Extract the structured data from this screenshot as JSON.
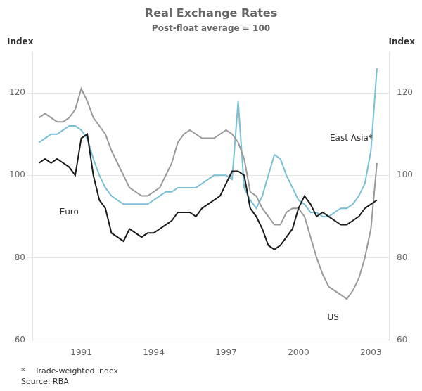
{
  "chart_data": {
    "type": "line",
    "title": "Real Exchange Rates",
    "subtitle": "Post-float average = 100",
    "y_label": "Index",
    "y2_label": "Index",
    "x": [
      1989.25,
      1989.5,
      1989.75,
      1990.0,
      1990.25,
      1990.5,
      1990.75,
      1991.0,
      1991.25,
      1991.5,
      1991.75,
      1992.0,
      1992.25,
      1992.5,
      1992.75,
      1993.0,
      1993.25,
      1993.5,
      1993.75,
      1994.0,
      1994.25,
      1994.5,
      1994.75,
      1995.0,
      1995.25,
      1995.5,
      1995.75,
      1996.0,
      1996.25,
      1996.5,
      1996.75,
      1997.0,
      1997.25,
      1997.5,
      1997.75,
      1998.0,
      1998.25,
      1998.5,
      1998.75,
      1999.0,
      1999.25,
      1999.5,
      1999.75,
      2000.0,
      2000.25,
      2000.5,
      2000.75,
      2001.0,
      2001.25,
      2001.5,
      2001.75,
      2002.0,
      2002.25,
      2002.5,
      2002.75,
      2003.0,
      2003.25
    ],
    "series": [
      {
        "color": "#1a1a1a",
        "values": [
          103,
          104,
          103,
          104,
          103,
          102,
          100,
          109,
          110,
          100,
          94,
          92,
          86,
          85,
          84,
          87,
          86,
          85,
          86,
          86,
          87,
          88,
          89,
          91,
          91,
          91,
          90,
          92,
          93,
          94,
          95,
          98,
          101,
          101,
          100,
          92,
          90,
          87,
          83,
          82,
          83,
          85,
          87,
          92,
          95,
          93,
          90,
          91,
          90,
          89,
          88,
          88,
          89,
          90,
          92,
          93,
          94
        ]
      },
      {
        "color": "#999999",
        "values": [
          114,
          115,
          114,
          113,
          113,
          114,
          116,
          121,
          118,
          114,
          112,
          110,
          106,
          103,
          100,
          97,
          96,
          95,
          95,
          96,
          97,
          100,
          103,
          108,
          110,
          111,
          110,
          109,
          109,
          109,
          110,
          111,
          110,
          108,
          104,
          96,
          95,
          92,
          90,
          88,
          88,
          91,
          92,
          92,
          90,
          85,
          80,
          76,
          73,
          72,
          71,
          70,
          72,
          75,
          80,
          87,
          103
        ]
      },
      {
        "color": "#7bbfd4",
        "values": [
          108,
          109,
          110,
          110,
          111,
          112,
          112,
          111,
          109,
          104,
          100,
          97,
          95,
          94,
          93,
          93,
          93,
          93,
          93,
          94,
          95,
          96,
          96,
          97,
          97,
          97,
          97,
          98,
          99,
          100,
          100,
          100,
          99,
          118,
          97,
          94,
          92,
          95,
          100,
          105,
          104,
          100,
          97,
          94,
          93,
          91,
          91,
          90,
          90,
          91,
          92,
          92,
          93,
          95,
          98,
          106,
          126
        ]
      }
    ],
    "annotations": [
      {
        "text": "Euro",
        "x": 1990.1,
        "y": 91
      },
      {
        "text": "US",
        "x": 2001.2,
        "y": 65.5
      },
      {
        "text": "East Asia*",
        "x": 2001.3,
        "y": 109
      }
    ],
    "footnotes": [
      "*    Trade-weighted index",
      "Source: RBA"
    ],
    "xlim": [
      1989.0,
      2003.75
    ],
    "xticks": [
      1991,
      1994,
      1997,
      2000,
      2003
    ],
    "ylim": [
      60,
      130
    ],
    "yticks": [
      60,
      80,
      100,
      120
    ],
    "y2lim": [
      60,
      130
    ],
    "y2ticks": [
      60,
      80,
      100,
      120
    ],
    "grid": "y"
  }
}
